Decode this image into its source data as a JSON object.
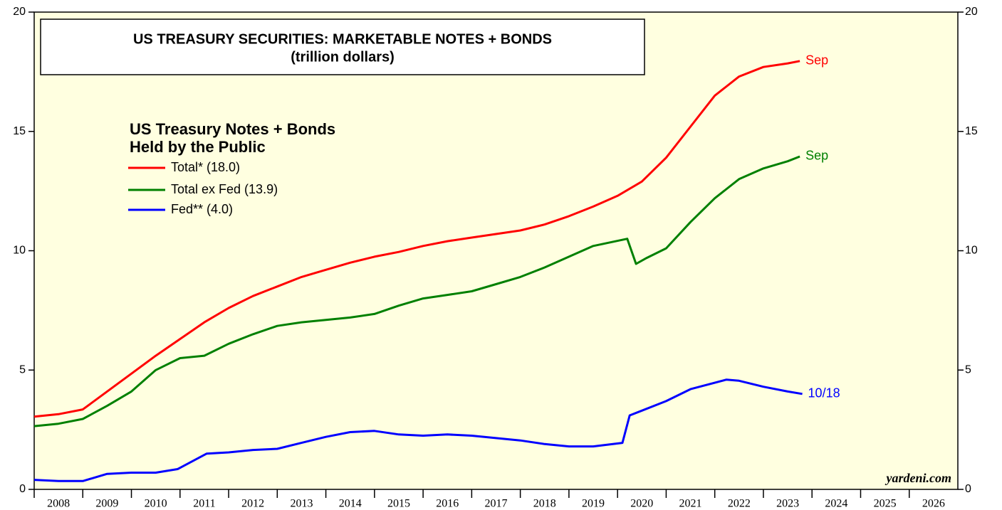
{
  "chart_data": {
    "type": "line",
    "title": "US TREASURY SECURITIES: MARKETABLE NOTES + BONDS",
    "subtitle": "(trillion dollars)",
    "legend_title": [
      "US Treasury Notes + Bonds",
      "Held by the Public"
    ],
    "source": "yardeni.com",
    "xlim": [
      2008,
      2027
    ],
    "xticks": [
      2008,
      2009,
      2010,
      2011,
      2012,
      2013,
      2014,
      2015,
      2016,
      2017,
      2018,
      2019,
      2020,
      2021,
      2022,
      2023,
      2024,
      2025,
      2026
    ],
    "ylim": [
      0,
      20
    ],
    "yticks": [
      0,
      5,
      10,
      15,
      20
    ],
    "background": "#ffffe0",
    "series": [
      {
        "name": "Total* (18.0)",
        "color": "#ff0000",
        "end_label": "Sep",
        "x": [
          2008,
          2008.5,
          2009,
          2009.5,
          2010,
          2010.5,
          2011,
          2011.5,
          2012,
          2012.5,
          2013,
          2013.5,
          2014,
          2014.5,
          2015,
          2015.5,
          2016,
          2016.5,
          2017,
          2017.5,
          2018,
          2018.5,
          2019,
          2019.5,
          2020,
          2020.5,
          2021,
          2021.5,
          2022,
          2022.5,
          2023,
          2023.5,
          2023.75
        ],
        "values": [
          3.05,
          3.15,
          3.35,
          4.1,
          4.85,
          5.6,
          6.3,
          7.0,
          7.6,
          8.1,
          8.5,
          8.9,
          9.2,
          9.5,
          9.75,
          9.95,
          10.2,
          10.4,
          10.55,
          10.7,
          10.85,
          11.1,
          11.45,
          11.85,
          12.3,
          12.9,
          13.9,
          15.2,
          16.5,
          17.3,
          17.7,
          17.85,
          17.95
        ]
      },
      {
        "name": "Total ex Fed (13.9)",
        "color": "#008000",
        "end_label": "Sep",
        "x": [
          2008,
          2008.5,
          2009,
          2009.5,
          2010,
          2010.5,
          2011,
          2011.5,
          2012,
          2012.5,
          2013,
          2013.5,
          2014,
          2014.5,
          2015,
          2015.5,
          2016,
          2016.5,
          2017,
          2017.5,
          2018,
          2018.5,
          2019,
          2019.5,
          2020.2,
          2020.38,
          2020.6,
          2021,
          2021.5,
          2022,
          2022.5,
          2023,
          2023.5,
          2023.75
        ],
        "values": [
          2.65,
          2.75,
          2.95,
          3.5,
          4.1,
          5.0,
          5.5,
          5.6,
          6.1,
          6.5,
          6.85,
          7.0,
          7.1,
          7.2,
          7.35,
          7.7,
          8.0,
          8.15,
          8.3,
          8.6,
          8.9,
          9.3,
          9.75,
          10.2,
          10.5,
          9.45,
          9.7,
          10.1,
          11.2,
          12.2,
          13.0,
          13.45,
          13.75,
          13.95
        ]
      },
      {
        "name": "Fed** (4.0)",
        "color": "#0000ff",
        "end_label": "10/18",
        "x": [
          2008,
          2008.5,
          2009,
          2009.5,
          2010,
          2010.5,
          2010.95,
          2011.55,
          2012,
          2012.5,
          2013,
          2013.5,
          2014,
          2014.5,
          2015,
          2015.5,
          2016,
          2016.5,
          2017,
          2017.5,
          2018,
          2018.5,
          2019,
          2019.5,
          2020.1,
          2020.25,
          2020.5,
          2021,
          2021.5,
          2022.24,
          2022.5,
          2023,
          2023.5,
          2023.8
        ],
        "values": [
          0.4,
          0.35,
          0.35,
          0.65,
          0.7,
          0.7,
          0.85,
          1.5,
          1.55,
          1.65,
          1.7,
          1.95,
          2.2,
          2.4,
          2.45,
          2.3,
          2.25,
          2.3,
          2.25,
          2.15,
          2.05,
          1.9,
          1.8,
          1.8,
          1.95,
          3.1,
          3.3,
          3.7,
          4.2,
          4.6,
          4.55,
          4.3,
          4.1,
          4.0
        ]
      }
    ]
  }
}
